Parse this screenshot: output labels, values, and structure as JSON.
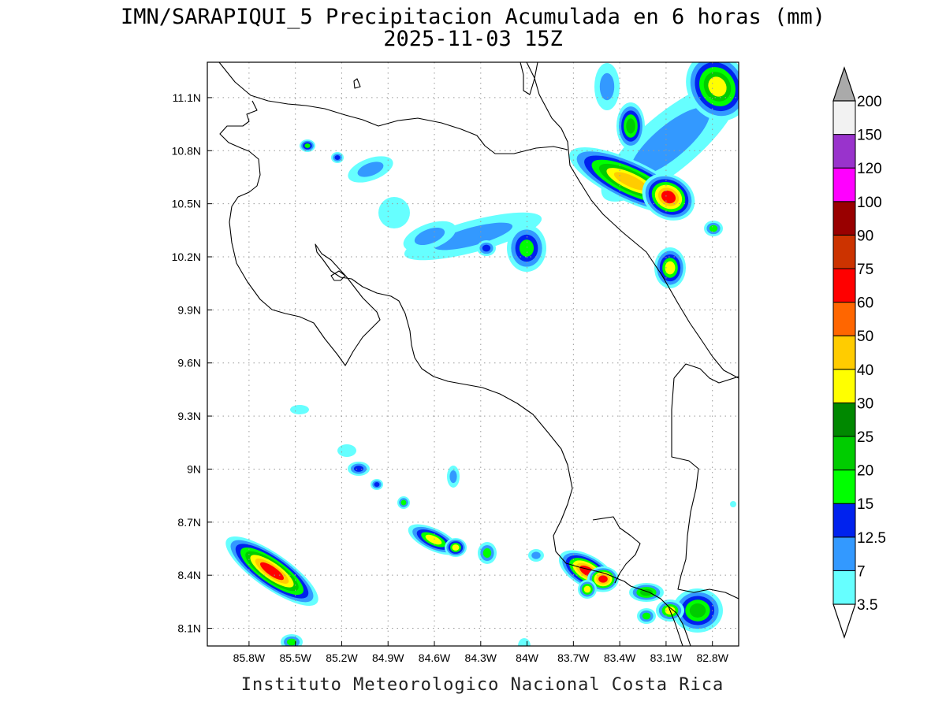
{
  "title": {
    "line1": "IMN/SARAPIQUI_5 Precipitacion Acumulada en 6 horas (mm)",
    "line2": "2025-11-03 15Z"
  },
  "footer": "Instituto Meteorologico Nacional Costa Rica",
  "map": {
    "lon_range": [
      -86.07,
      -82.63
    ],
    "lat_range": [
      8.0,
      11.3
    ],
    "lon_ticks": [
      "85.8W",
      "85.5W",
      "85.2W",
      "84.9W",
      "84.6W",
      "84.3W",
      "84W",
      "83.7W",
      "83.4W",
      "83.1W",
      "82.8W"
    ],
    "lat_ticks": [
      "11.1N",
      "10.8N",
      "10.5N",
      "10.2N",
      "9.9N",
      "9.6N",
      "9.3N",
      "9N",
      "8.7N",
      "8.4N",
      "8.1N"
    ],
    "gridlines": "dotted"
  },
  "colorbar": {
    "labels": [
      "3.5",
      "7",
      "12.5",
      "15",
      "20",
      "25",
      "30",
      "40",
      "50",
      "60",
      "75",
      "90",
      "100",
      "120",
      "150",
      "200"
    ],
    "colors": [
      "#ffffff",
      "#66ffff",
      "#3399ff",
      "#0022ee",
      "#00ff00",
      "#00cc00",
      "#008800",
      "#ffff00",
      "#ffcc00",
      "#ff6600",
      "#ff0000",
      "#cc3300",
      "#990000",
      "#ff00ff",
      "#9933cc",
      "#f2f2f2",
      "#aaaaaa"
    ]
  }
}
